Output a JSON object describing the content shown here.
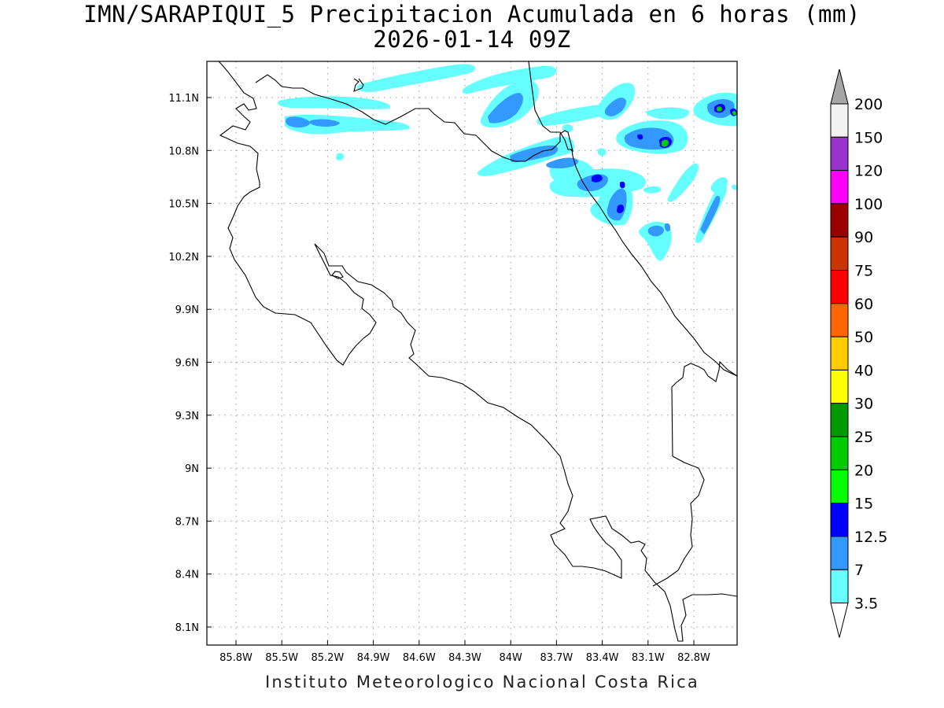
{
  "title": {
    "line1": "IMN/SARAPIQUI_5 Precipitacion Acumulada en 6 horas (mm)",
    "line2": "2026-01-14 09Z"
  },
  "footer": "Instituto Meteorologico Nacional Costa Rica",
  "map": {
    "lon_range": [
      -86.0,
      -82.5
    ],
    "lat_range": [
      8.0,
      11.3
    ],
    "lat_ticks": [
      "11.1N",
      "10.8N",
      "10.5N",
      "10.2N",
      "9.9N",
      "9.6N",
      "9.3N",
      "9N",
      "8.7N",
      "8.4N",
      "8.1N"
    ],
    "lon_ticks": [
      "85.8W",
      "85.5W",
      "85.2W",
      "84.9W",
      "84.6W",
      "84.3W",
      "84W",
      "83.7W",
      "83.4W",
      "83.1W",
      "82.8W"
    ],
    "grid": "dotted"
  },
  "colorbar": {
    "labels": [
      "200",
      "150",
      "120",
      "100",
      "90",
      "75",
      "60",
      "50",
      "40",
      "30",
      "25",
      "20",
      "15",
      "12.5",
      "7",
      "3.5"
    ],
    "colors": [
      "#a6a6a6",
      "#f2f2f2",
      "#9a33cc",
      "#ff00ff",
      "#990000",
      "#cc3300",
      "#ff0000",
      "#ff6600",
      "#ffcc00",
      "#ffff00",
      "#009900",
      "#00cc00",
      "#00ff00",
      "#0000ff",
      "#3399ff",
      "#66ffff"
    ]
  },
  "colors": {
    "light_cyan": "#66ffff",
    "mid_blue": "#3399ff",
    "dark_blue": "#0000ff",
    "green": "#00cc00"
  }
}
